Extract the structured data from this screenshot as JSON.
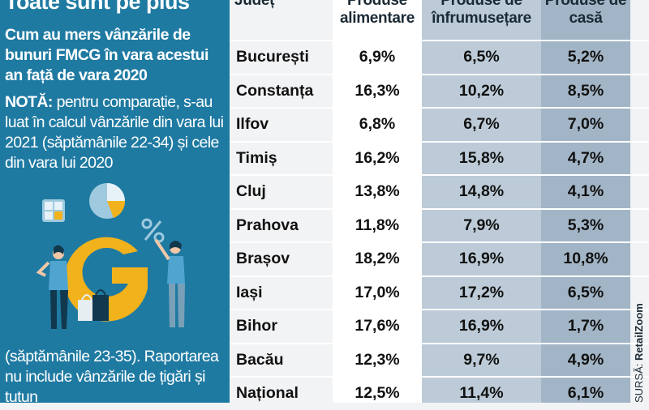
{
  "left_panel": {
    "title": "Toate sunt pe plus",
    "subtitle": "Cum au mers vânzările de bunuri FMCG în vara acestui an față de vara 2020",
    "note_label": "NOTĂ:",
    "note_text": " pentru comparație, s-au luat în calcul vânzările din vara lui 2021 (săptămânile 22-34) și cele din vara lui 2020",
    "note_continued": "(săptămânile 23-35). Raportarea nu include vânzările de țigări și tutun"
  },
  "source": {
    "label": "SURSĂ:",
    "value": "RetailZoom"
  },
  "colors": {
    "panel": "#1f7aa2",
    "table_bg": "#f2f3f4",
    "col_white": "#ffffff",
    "col_light": "#bccbd7",
    "col_dark": "#a2b5c6",
    "illus_yellow": "#f2b21c"
  },
  "chart_data": {
    "type": "table",
    "columns": [
      "Județ",
      "Produse alimentare",
      "Produse de înfrumusețare",
      "Produse de casă"
    ],
    "rows": [
      {
        "county": "București",
        "values": [
          "6,9%",
          "6,5%",
          "5,2%"
        ]
      },
      {
        "county": "Constanța",
        "values": [
          "16,3%",
          "10,2%",
          "8,5%"
        ]
      },
      {
        "county": "Ilfov",
        "values": [
          "6,8%",
          "6,7%",
          "7,0%"
        ]
      },
      {
        "county": "Timiș",
        "values": [
          "16,2%",
          "15,8%",
          "4,7%"
        ]
      },
      {
        "county": "Cluj",
        "values": [
          "13,8%",
          "14,8%",
          "4,1%"
        ]
      },
      {
        "county": "Prahova",
        "values": [
          "11,8%",
          "7,9%",
          "5,3%"
        ]
      },
      {
        "county": "Brașov",
        "values": [
          "18,2%",
          "16,9%",
          "10,8%"
        ]
      },
      {
        "county": "Iași",
        "values": [
          "17,0%",
          "17,2%",
          "6,5%"
        ]
      },
      {
        "county": "Bihor",
        "values": [
          "17,6%",
          "16,9%",
          "1,7%"
        ]
      },
      {
        "county": "Bacău",
        "values": [
          "12,3%",
          "9,7%",
          "4,9%"
        ]
      },
      {
        "county": "Național",
        "values": [
          "12,5%",
          "11,4%",
          "6,1%"
        ]
      }
    ]
  },
  "illustration": {
    "icons": [
      "calculator-icon",
      "pie-chart-icon",
      "percent-icon",
      "shopping-bag-icon",
      "person-icon"
    ]
  }
}
